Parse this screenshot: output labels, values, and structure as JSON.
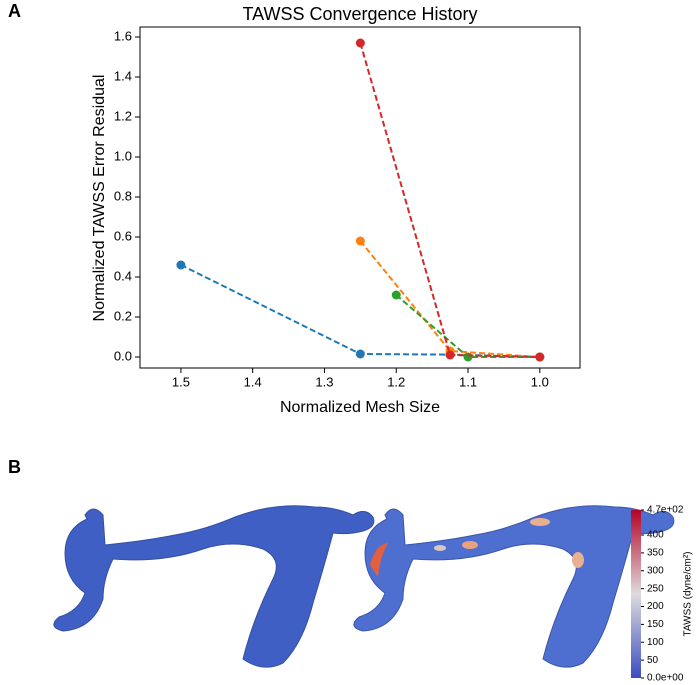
{
  "panel_labels": [
    "A",
    "B"
  ],
  "chart_data": {
    "type": "line",
    "title": "TAWSS Convergence History",
    "x_label": "Normalized Mesh Size",
    "y_label": "Normalized TAWSS Error Residual",
    "xlim": [
      1.557,
      0.944
    ],
    "ylim": [
      -0.055,
      1.65
    ],
    "xticks": [
      1.5,
      1.4,
      1.3,
      1.2,
      1.1,
      {
        "value": 1,
        "label": "1.0"
      }
    ],
    "yticks": [
      {
        "value": 0,
        "label": "0.0"
      },
      0.2,
      0.4,
      0.6,
      0.8,
      {
        "value": 1,
        "label": "1.0"
      },
      1.2,
      1.4,
      1.6
    ],
    "line_style": "dashed",
    "series": [
      {
        "color": "#1f77b4",
        "x": [
          1.5,
          1.25,
          1.125,
          1.0
        ],
        "values": [
          0.46,
          0.015,
          0.012,
          0.0
        ]
      },
      {
        "color": "#ff7f0e",
        "x": [
          1.25,
          1.125,
          1.0
        ],
        "values": [
          0.58,
          0.03,
          0.0
        ]
      },
      {
        "color": "#2ca02c",
        "x": [
          1.2,
          1.1,
          1.0
        ],
        "values": [
          0.31,
          0.0,
          0.0
        ]
      },
      {
        "color": "#d62728",
        "x": [
          1.25,
          1.125,
          1.0
        ],
        "values": [
          1.57,
          0.01,
          0.0
        ]
      }
    ]
  },
  "colorbar": {
    "label": "TAWSS (dyne/cm²)",
    "lim": [
      0,
      470
    ],
    "ticks": [
      {
        "value": 470,
        "label": "4.7e+02"
      },
      400,
      350,
      300,
      250,
      200,
      150,
      100,
      50,
      {
        "value": 0,
        "label": "0.0e+00"
      }
    ]
  }
}
